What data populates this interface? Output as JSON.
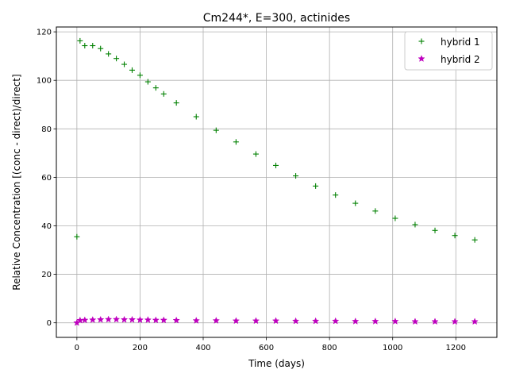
{
  "chart_data": {
    "type": "scatter",
    "title": "Cm244*, E=300, actinides",
    "xlabel": "Time (days)",
    "ylabel": "Relative Concentration [(conc - direct)/direct]",
    "xlim": [
      -65,
      1330
    ],
    "ylim": [
      -6,
      122
    ],
    "xticks": [
      0,
      200,
      400,
      600,
      800,
      1000,
      1200
    ],
    "yticks": [
      0,
      20,
      40,
      60,
      80,
      100,
      120
    ],
    "xtick_labels": [
      "0",
      "200",
      "400",
      "600",
      "800",
      "1000",
      "1200"
    ],
    "ytick_labels": [
      "0",
      "20",
      "40",
      "60",
      "80",
      "100",
      "120"
    ],
    "grid": true,
    "legend_position": "top-right",
    "x": [
      0,
      10,
      25,
      50,
      75,
      100,
      125,
      150,
      175,
      200,
      225,
      250,
      275,
      315,
      378,
      441,
      504,
      567,
      630,
      693,
      756,
      819,
      882,
      945,
      1008,
      1071,
      1134,
      1197,
      1260
    ],
    "series": [
      {
        "name": "hybrid 1",
        "marker": "plus",
        "color": "#008000",
        "values": [
          35.5,
          116.3,
          114.3,
          114.3,
          113.1,
          110.9,
          109.0,
          106.6,
          104.2,
          102.1,
          99.4,
          96.9,
          94.4,
          90.7,
          85.0,
          79.4,
          74.6,
          69.6,
          64.9,
          60.6,
          56.4,
          52.7,
          49.3,
          46.1,
          43.1,
          40.5,
          38.1,
          36.0,
          34.2
        ]
      },
      {
        "name": "hybrid 2",
        "marker": "star",
        "color": "#bf00bf",
        "values": [
          0.0,
          1.0,
          1.1,
          1.2,
          1.3,
          1.4,
          1.4,
          1.3,
          1.3,
          1.2,
          1.2,
          1.1,
          1.1,
          1.0,
          0.9,
          0.9,
          0.8,
          0.8,
          0.8,
          0.7,
          0.7,
          0.7,
          0.6,
          0.6,
          0.6,
          0.5,
          0.5,
          0.5,
          0.5
        ]
      }
    ]
  }
}
